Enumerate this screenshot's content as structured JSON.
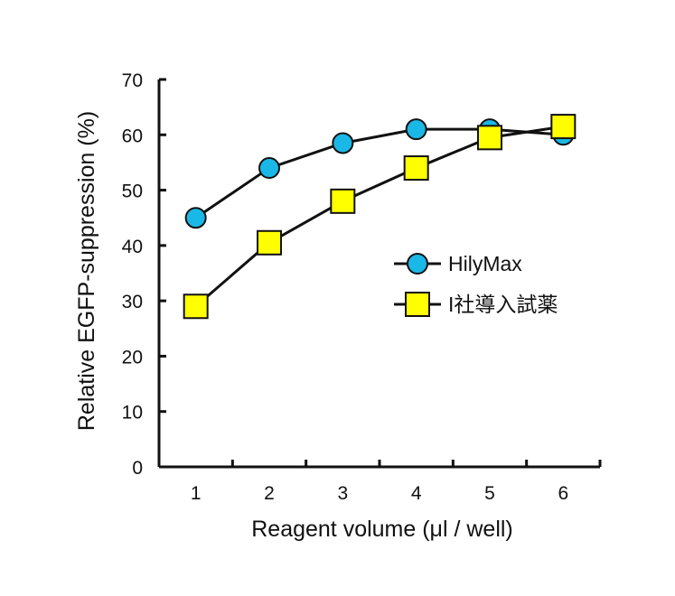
{
  "chart_data": {
    "type": "line",
    "title": "",
    "xlabel": "Reagent volume (μl / well)",
    "ylabel": "Relative EGFP-suppression (%)",
    "categories": [
      "1",
      "2",
      "3",
      "4",
      "5",
      "6"
    ],
    "x": [
      1,
      2,
      3,
      4,
      5,
      6
    ],
    "xlim": [
      0.5,
      6.5
    ],
    "ylim": [
      0,
      70
    ],
    "yticks": [
      "0",
      "10",
      "20",
      "30",
      "40",
      "50",
      "60",
      "70"
    ],
    "grid": false,
    "legend_position": "right",
    "series": [
      {
        "name": "HilyMax",
        "marker": "circle",
        "color": "#1ab8e6",
        "values": [
          45,
          54,
          58.5,
          61,
          61,
          60
        ]
      },
      {
        "name": "I社導入試薬",
        "marker": "square",
        "color": "#ffff00",
        "values": [
          29,
          40.5,
          48,
          54,
          59.5,
          61.5
        ]
      }
    ]
  }
}
